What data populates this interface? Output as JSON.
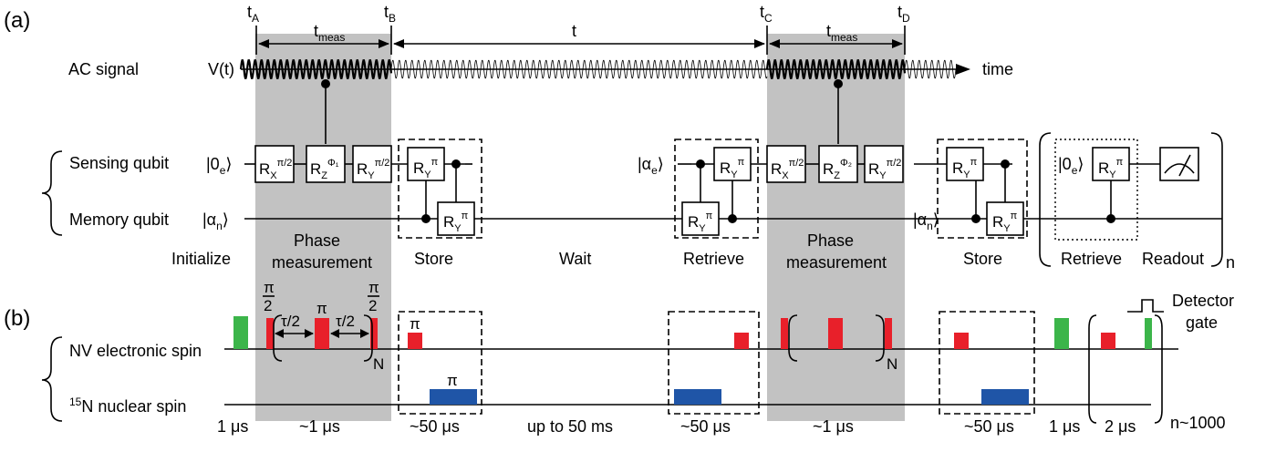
{
  "panel_a_label": "(a)",
  "panel_b_label": "(b)",
  "times": {
    "tA": "t",
    "tA_sub": "A",
    "tB": "t",
    "tB_sub": "B",
    "tC": "t",
    "tC_sub": "C",
    "tD": "t",
    "tD_sub": "D",
    "tmeas1": "t",
    "tmeas1_sub": "meas",
    "tmeas2": "t",
    "tmeas2_sub": "meas",
    "t_wait": "t"
  },
  "ac": {
    "label": "AC signal",
    "vt": "V(t)",
    "time": "time"
  },
  "qubits": {
    "sensing": "Sensing qubit",
    "memory": "Memory qubit",
    "ket_0e": "|0",
    "ket_0e_sub": "e",
    "ket_alpha_n": "|α",
    "ket_alpha_n_sub": "n",
    "ket_alpha_e": "|α",
    "ket_alpha_e_sub": "e",
    "ket_close": "⟩"
  },
  "gates": {
    "R": "R",
    "X": "X",
    "Y": "Y",
    "Z": "Z",
    "pi2": "π/2",
    "pi": "π",
    "phi1": "Φ₁",
    "phi2": "Φ₂"
  },
  "stages": {
    "initialize": "Initialize",
    "phase1_a": "Phase",
    "phase1_b": "measurement",
    "store1": "Store",
    "wait": "Wait",
    "retrieve1": "Retrieve",
    "phase2_a": "Phase",
    "phase2_b": "measurement",
    "store2": "Store",
    "retrieve2": "Retrieve",
    "readout": "Readout",
    "n": "n"
  },
  "pulse": {
    "nv_spin": "NV electronic spin",
    "n15": "15",
    "n15_rest": "N nuclear spin",
    "pi_frac_num": "π",
    "pi_frac_den": "2",
    "tau2": "τ/2",
    "pi": "π",
    "N": "N",
    "detector": "Detector",
    "gate": "gate",
    "n_reps": "n~1000"
  },
  "durations": [
    "1 μs",
    "~1 μs",
    "~50 μs",
    "up to 50 ms",
    "~50 μs",
    "~1 μs",
    "~50 μs",
    "1 μs",
    "2 μs"
  ],
  "colors": {
    "shade": "#c2c2c2",
    "green": "#3cb54a",
    "red": "#e8202a",
    "blue": "#1f55a7"
  }
}
